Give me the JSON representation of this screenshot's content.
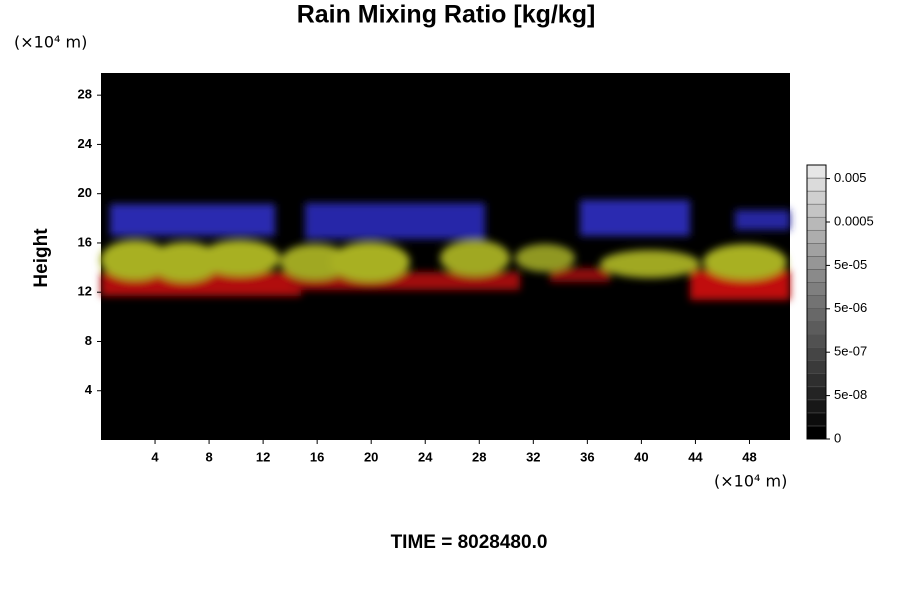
{
  "chart_data": {
    "type": "volume",
    "title": "Rain Mixing Ratio [kg/kg]",
    "y_label": "Height",
    "x_unit": "(×10⁴ m)",
    "y_unit": "(×10⁴ m)",
    "footer": "TIME = 8028480.0",
    "xlim": [
      0,
      51
    ],
    "xticks": [
      4,
      8,
      12,
      16,
      20,
      24,
      28,
      32,
      36,
      40,
      44,
      48
    ],
    "ylim": [
      0,
      29.8
    ],
    "yticks": [
      4,
      8,
      12,
      16,
      20,
      24,
      28
    ],
    "colorbar_ticks": [
      0,
      {
        "value": 5e-08,
        "label": "5e-08"
      },
      {
        "value": 5e-07,
        "label": "5e-07"
      },
      {
        "value": 5e-06,
        "label": "5e-06"
      },
      {
        "value": 5e-05,
        "label": "5e-05"
      },
      0.0005,
      0.005
    ]
  }
}
